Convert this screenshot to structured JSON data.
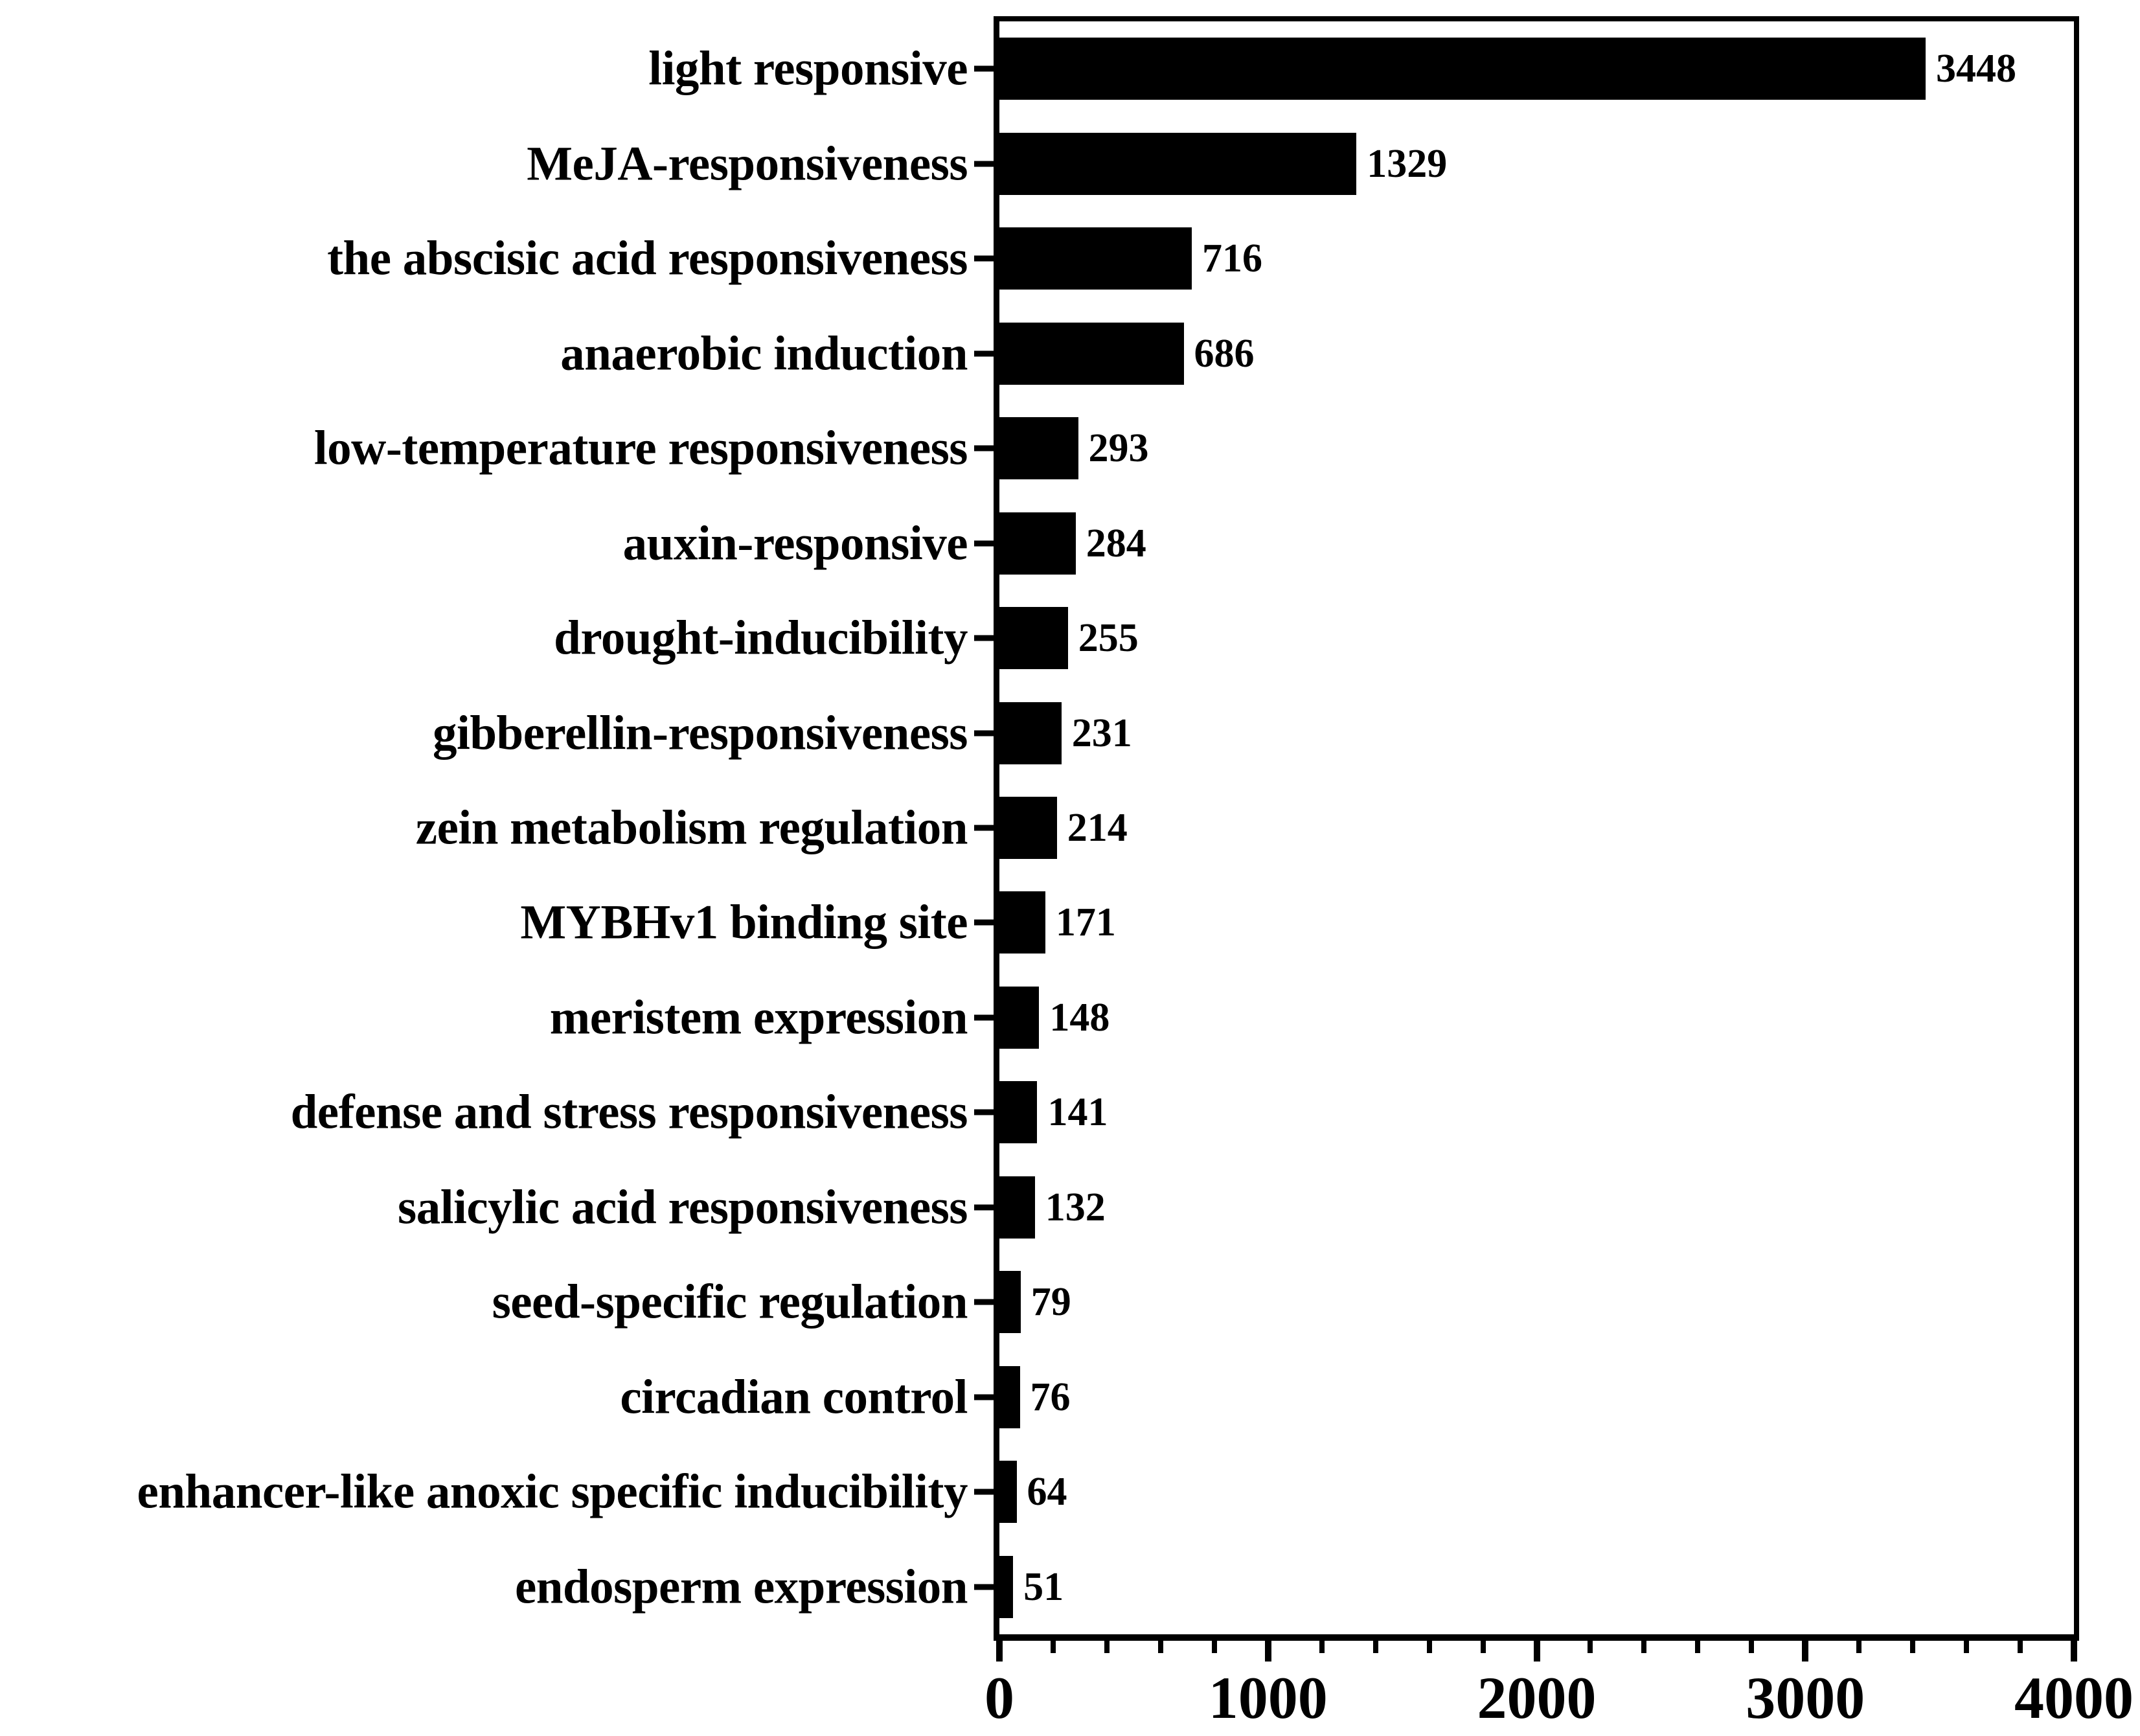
{
  "figure": {
    "background_color": "#ffffff",
    "bar_color": "#000000",
    "axis_color": "#000000",
    "text_color": "#000000"
  },
  "chart_data": {
    "type": "bar",
    "orientation": "horizontal",
    "title": "",
    "xlabel": "",
    "ylabel": "",
    "xlim": [
      0,
      4000
    ],
    "x_major_ticks": [
      0,
      1000,
      2000,
      3000,
      4000
    ],
    "x_major_tick_labels": [
      "0",
      "1000",
      "2000",
      "3000",
      "4000"
    ],
    "x_minor_tick_step": 200,
    "grid": false,
    "legend": false,
    "value_labels_shown": true,
    "categories": [
      "light responsive",
      "MeJA-responsiveness",
      "the abscisic acid responsiveness",
      "anaerobic induction",
      "low-temperature responsiveness",
      "auxin-responsive",
      "drought-inducibility",
      "gibberellin-responsiveness",
      "zein metabolism regulation",
      "MYBHv1 binding site",
      "meristem expression",
      "defense and stress responsiveness",
      "salicylic acid responsiveness",
      "seed-specific regulation",
      "circadian control",
      "enhancer-like anoxic specific inducibility",
      "endosperm expression"
    ],
    "values": [
      3448,
      1329,
      716,
      686,
      293,
      284,
      255,
      231,
      214,
      171,
      148,
      141,
      132,
      79,
      76,
      64,
      51
    ]
  }
}
